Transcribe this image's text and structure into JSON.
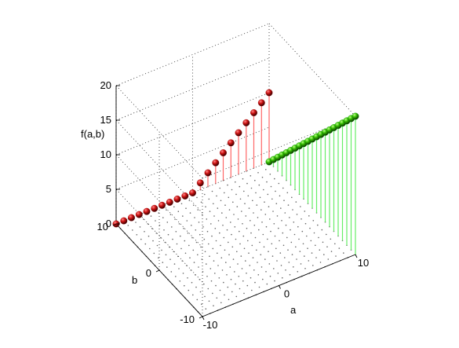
{
  "chart_data": {
    "type": "stem3d",
    "title": "",
    "xlabel": "a",
    "ylabel": "b",
    "zlabel": "f(a,b)",
    "xlim": [
      -10,
      10
    ],
    "ylim": [
      -10,
      10
    ],
    "zlim": [
      0,
      20
    ],
    "xticks": [
      "-10",
      "0",
      "10"
    ],
    "yticks": [
      "-10",
      "0",
      "10"
    ],
    "zticks": [
      "0",
      "5",
      "10",
      "15",
      "20"
    ],
    "grid": true,
    "floor_dots": true,
    "series": [
      {
        "color": "#ff6666",
        "marker_color": "#990000",
        "points": [
          {
            "a": -10,
            "b": 10,
            "f": 0
          },
          {
            "a": -9,
            "b": 10,
            "f": 0
          },
          {
            "a": -8,
            "b": 10,
            "f": 0
          },
          {
            "a": -7,
            "b": 10,
            "f": 0
          },
          {
            "a": -6,
            "b": 10,
            "f": 0
          },
          {
            "a": -5,
            "b": 10,
            "f": 0
          },
          {
            "a": -4,
            "b": 10,
            "f": 0
          },
          {
            "a": -3,
            "b": 10,
            "f": 0
          },
          {
            "a": -2,
            "b": 10,
            "f": 0
          },
          {
            "a": -1,
            "b": 10,
            "f": 0
          },
          {
            "a": 0,
            "b": 10,
            "f": 0
          },
          {
            "a": 1,
            "b": 10,
            "f": 1
          },
          {
            "a": 2,
            "b": 10,
            "f": 2
          },
          {
            "a": 3,
            "b": 10,
            "f": 3
          },
          {
            "a": 4,
            "b": 10,
            "f": 4
          },
          {
            "a": 5,
            "b": 10,
            "f": 5
          },
          {
            "a": 6,
            "b": 10,
            "f": 6
          },
          {
            "a": 7,
            "b": 10,
            "f": 7
          },
          {
            "a": 8,
            "b": 10,
            "f": 8
          },
          {
            "a": 9,
            "b": 10,
            "f": 9
          },
          {
            "a": 10,
            "b": 10,
            "f": 10
          }
        ]
      },
      {
        "color": "#66ee66",
        "marker_color": "#009900",
        "points": [
          {
            "a": 10,
            "b": -10,
            "f": 20
          },
          {
            "a": 10,
            "b": -9,
            "f": 19
          },
          {
            "a": 10,
            "b": -8,
            "f": 18
          },
          {
            "a": 10,
            "b": -7,
            "f": 17
          },
          {
            "a": 10,
            "b": -6,
            "f": 16
          },
          {
            "a": 10,
            "b": -5,
            "f": 15
          },
          {
            "a": 10,
            "b": -4,
            "f": 14
          },
          {
            "a": 10,
            "b": -3,
            "f": 13
          },
          {
            "a": 10,
            "b": -2,
            "f": 12
          },
          {
            "a": 10,
            "b": -1,
            "f": 11
          },
          {
            "a": 10,
            "b": 0,
            "f": 10
          },
          {
            "a": 10,
            "b": 1,
            "f": 9
          },
          {
            "a": 10,
            "b": 2,
            "f": 8
          },
          {
            "a": 10,
            "b": 3,
            "f": 7
          },
          {
            "a": 10,
            "b": 4,
            "f": 6
          },
          {
            "a": 10,
            "b": 5,
            "f": 5
          },
          {
            "a": 10,
            "b": 6,
            "f": 4
          },
          {
            "a": 10,
            "b": 7,
            "f": 3
          },
          {
            "a": 10,
            "b": 8,
            "f": 2
          },
          {
            "a": 10,
            "b": 9,
            "f": 1
          },
          {
            "a": 10,
            "b": 10,
            "f": 0
          }
        ]
      }
    ]
  }
}
